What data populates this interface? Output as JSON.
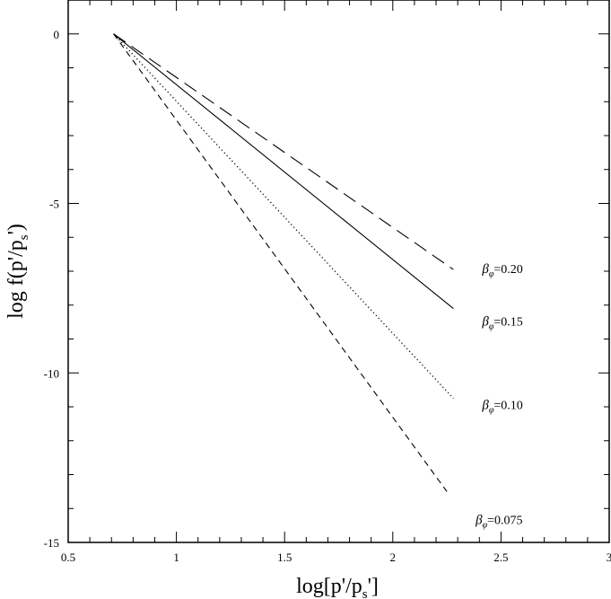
{
  "chart_data": {
    "type": "line",
    "title": "",
    "xlabel": {
      "main": "log[p'/p",
      "sub": "s",
      "tail": "']"
    },
    "ylabel": {
      "main": "log f(p'/p",
      "sub": "s",
      "tail": "')"
    },
    "xlim": [
      0.5,
      3.0
    ],
    "ylim": [
      -15,
      1.0
    ],
    "x_ticks": [
      "0.5",
      "1",
      "1.5",
      "2",
      "2.5",
      "3"
    ],
    "x_tick_values": [
      0.5,
      1.0,
      1.5,
      2.0,
      2.5,
      3.0
    ],
    "y_ticks": [
      "0",
      "-5",
      "-10",
      "-15"
    ],
    "y_tick_values": [
      0,
      -5,
      -10,
      -15
    ],
    "grid": false,
    "series": [
      {
        "label_prefix": "β",
        "label_sub": "φ",
        "label_value": "=0.20",
        "style": "long-dash",
        "x": [
          0.71,
          2.28
        ],
        "y": [
          0.0,
          -6.95
        ]
      },
      {
        "label_prefix": "β",
        "label_sub": "φ",
        "label_value": "=0.15",
        "style": "solid",
        "x": [
          0.71,
          2.28
        ],
        "y": [
          0.0,
          -8.1
        ]
      },
      {
        "label_prefix": "β",
        "label_sub": "φ",
        "label_value": "=0.10",
        "style": "dotted",
        "x": [
          0.71,
          2.28
        ],
        "y": [
          0.0,
          -10.75
        ]
      },
      {
        "label_prefix": "β",
        "label_sub": "φ",
        "label_value": "=0.075",
        "style": "short-dash",
        "x": [
          0.71,
          2.25
        ],
        "y": [
          0.0,
          -13.5
        ]
      }
    ]
  }
}
